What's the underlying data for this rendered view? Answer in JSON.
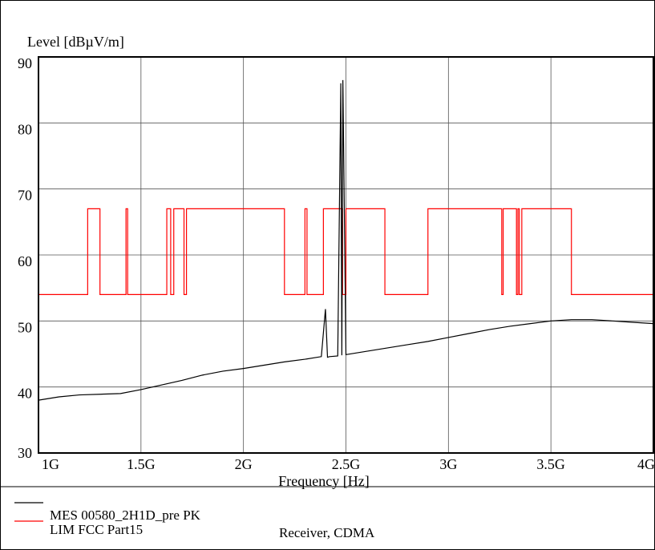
{
  "chart_data": {
    "type": "line",
    "ylabel": "Level [dBµV/m]",
    "xlabel": "Frequency [Hz]",
    "xlim": [
      1000000000,
      4000000000
    ],
    "ylim": [
      30,
      90
    ],
    "x_ticks": [
      {
        "value": 1000000000,
        "label": "1G"
      },
      {
        "value": 1500000000,
        "label": "1.5G"
      },
      {
        "value": 2000000000,
        "label": "2G"
      },
      {
        "value": 2500000000,
        "label": "2.5G"
      },
      {
        "value": 3000000000,
        "label": "3G"
      },
      {
        "value": 3500000000,
        "label": "3.5G"
      },
      {
        "value": 4000000000,
        "label": "4G"
      }
    ],
    "y_ticks": [
      {
        "value": 30,
        "label": "30"
      },
      {
        "value": 40,
        "label": "40"
      },
      {
        "value": 50,
        "label": "50"
      },
      {
        "value": 60,
        "label": "60"
      },
      {
        "value": 70,
        "label": "70"
      },
      {
        "value": 80,
        "label": "80"
      },
      {
        "value": 90,
        "label": "90"
      }
    ],
    "grid": true,
    "series": [
      {
        "name": "MES 00580_2H1D_pre PK",
        "color": "#000000",
        "x": [
          1000000000,
          1100000000,
          1200000000,
          1300000000,
          1400000000,
          1500000000,
          1600000000,
          1700000000,
          1800000000,
          1900000000,
          2000000000,
          2100000000,
          2200000000,
          2300000000,
          2380000000,
          2400000000,
          2410000000,
          2420000000,
          2460000000,
          2475000000,
          2480000000,
          2485000000,
          2500000000,
          2600000000,
          2700000000,
          2800000000,
          2900000000,
          3000000000,
          3100000000,
          3200000000,
          3300000000,
          3400000000,
          3500000000,
          3600000000,
          3700000000,
          3800000000,
          3900000000,
          4000000000
        ],
        "y": [
          38.0,
          38.5,
          38.8,
          38.9,
          39.0,
          39.6,
          40.3,
          41.0,
          41.8,
          42.4,
          42.8,
          43.3,
          43.8,
          44.2,
          44.6,
          51.8,
          44.5,
          44.6,
          44.7,
          86.0,
          44.8,
          86.5,
          44.9,
          45.4,
          45.9,
          46.4,
          46.9,
          47.5,
          48.1,
          48.7,
          49.2,
          49.6,
          50.0,
          50.2,
          50.2,
          50.0,
          49.8,
          49.6
        ]
      },
      {
        "name": "LIM FCC Part15",
        "color": "#ff0000",
        "x": [
          1000000000,
          1240000000,
          1240000000,
          1300000000,
          1300000000,
          1427000000,
          1427000000,
          1435000000,
          1435000000,
          1626000000,
          1626000000,
          1645000000,
          1645000000,
          1660000000,
          1660000000,
          1710000000,
          1710000000,
          1722000000,
          1722000000,
          2200000000,
          2200000000,
          2300000000,
          2300000000,
          2310000000,
          2310000000,
          2390000000,
          2390000000,
          2483500000,
          2483500000,
          2500000000,
          2500000000,
          2690000000,
          2690000000,
          2900000000,
          2900000000,
          3260000000,
          3260000000,
          3267000000,
          3267000000,
          3332000000,
          3332000000,
          3339000000,
          3339000000,
          3345800000,
          3345800000,
          3358000000,
          3358000000,
          3600000000,
          3600000000,
          4000000000
        ],
        "y": [
          54,
          54,
          67,
          67,
          54,
          54,
          67,
          67,
          54,
          54,
          67,
          67,
          54,
          54,
          67,
          67,
          54,
          54,
          67,
          67,
          54,
          54,
          67,
          67,
          54,
          54,
          67,
          67,
          54,
          54,
          67,
          67,
          54,
          54,
          67,
          67,
          54,
          54,
          67,
          67,
          54,
          54,
          67,
          67,
          54,
          54,
          67,
          67,
          54,
          54
        ]
      }
    ]
  },
  "legend": {
    "mes_line1": "MES   00580_2H1D_pre PK",
    "lim_line": "LIM   FCC Part15",
    "receiver": "Receiver, CDMA"
  }
}
